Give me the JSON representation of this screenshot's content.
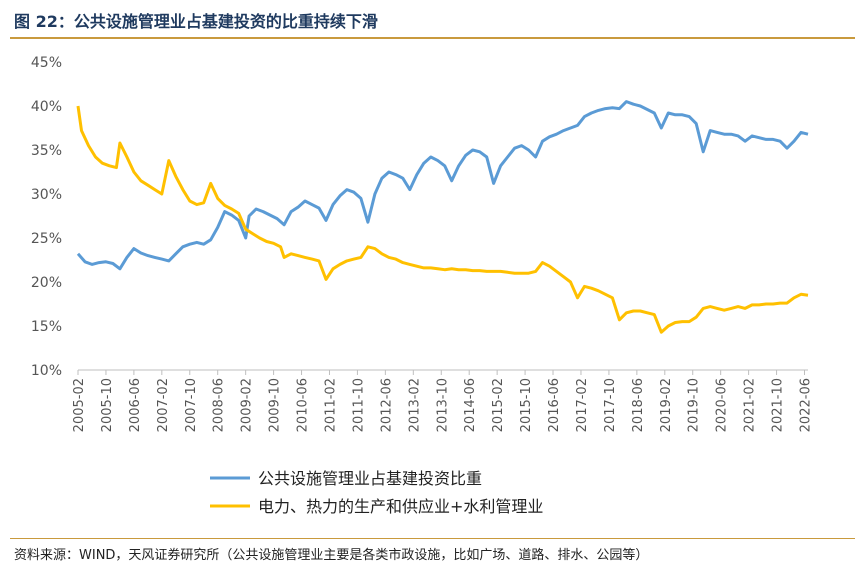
{
  "figure": {
    "title": "图 22：公共设施管理业占基建投资的比重持续下滑",
    "source": "资料来源：WIND，天风证券研究所（公共设施管理业主要是各类市政设施，比如广场、道路、排水、公园等）"
  },
  "chart_data": {
    "type": "line",
    "title": "",
    "xlabel": "",
    "ylabel": "",
    "ylim": [
      0.1,
      0.45
    ],
    "yticks": [
      "10%",
      "15%",
      "20%",
      "25%",
      "30%",
      "35%",
      "40%",
      "45%"
    ],
    "x_ticks": [
      "2005-02",
      "2005-10",
      "2006-06",
      "2007-02",
      "2007-10",
      "2008-06",
      "2009-02",
      "2009-10",
      "2010-06",
      "2011-02",
      "2011-10",
      "2012-06",
      "2013-02",
      "2013-10",
      "2014-06",
      "2015-02",
      "2015-10",
      "2016-06",
      "2017-02",
      "2017-10",
      "2018-06",
      "2019-02",
      "2019-10",
      "2020-06",
      "2021-02",
      "2021-10",
      "2022-06"
    ],
    "grid": false,
    "legend_position": "bottom",
    "series": [
      {
        "name": "公共设施管理业占基建投资比重",
        "color": "#5b9bd5",
        "points": [
          [
            "2005-02",
            0.232
          ],
          [
            "2005-04",
            0.223
          ],
          [
            "2005-06",
            0.22
          ],
          [
            "2005-08",
            0.222
          ],
          [
            "2005-10",
            0.223
          ],
          [
            "2005-12",
            0.221
          ],
          [
            "2006-02",
            0.215
          ],
          [
            "2006-04",
            0.228
          ],
          [
            "2006-06",
            0.238
          ],
          [
            "2006-08",
            0.233
          ],
          [
            "2006-10",
            0.23
          ],
          [
            "2006-12",
            0.228
          ],
          [
            "2007-02",
            0.226
          ],
          [
            "2007-04",
            0.224
          ],
          [
            "2007-06",
            0.232
          ],
          [
            "2007-08",
            0.24
          ],
          [
            "2007-10",
            0.243
          ],
          [
            "2007-12",
            0.245
          ],
          [
            "2008-02",
            0.243
          ],
          [
            "2008-04",
            0.248
          ],
          [
            "2008-06",
            0.262
          ],
          [
            "2008-08",
            0.28
          ],
          [
            "2008-10",
            0.276
          ],
          [
            "2008-12",
            0.27
          ],
          [
            "2009-02",
            0.25
          ],
          [
            "2009-03",
            0.275
          ],
          [
            "2009-05",
            0.283
          ],
          [
            "2009-07",
            0.28
          ],
          [
            "2009-09",
            0.276
          ],
          [
            "2009-11",
            0.272
          ],
          [
            "2010-01",
            0.265
          ],
          [
            "2010-03",
            0.28
          ],
          [
            "2010-05",
            0.285
          ],
          [
            "2010-07",
            0.292
          ],
          [
            "2010-09",
            0.288
          ],
          [
            "2010-11",
            0.284
          ],
          [
            "2011-01",
            0.27
          ],
          [
            "2011-03",
            0.288
          ],
          [
            "2011-05",
            0.298
          ],
          [
            "2011-07",
            0.305
          ],
          [
            "2011-09",
            0.302
          ],
          [
            "2011-11",
            0.295
          ],
          [
            "2012-01",
            0.268
          ],
          [
            "2012-03",
            0.3
          ],
          [
            "2012-05",
            0.318
          ],
          [
            "2012-07",
            0.325
          ],
          [
            "2012-09",
            0.322
          ],
          [
            "2012-11",
            0.318
          ],
          [
            "2013-01",
            0.305
          ],
          [
            "2013-03",
            0.322
          ],
          [
            "2013-05",
            0.335
          ],
          [
            "2013-07",
            0.342
          ],
          [
            "2013-09",
            0.338
          ],
          [
            "2013-11",
            0.332
          ],
          [
            "2014-01",
            0.315
          ],
          [
            "2014-03",
            0.332
          ],
          [
            "2014-05",
            0.344
          ],
          [
            "2014-07",
            0.35
          ],
          [
            "2014-09",
            0.348
          ],
          [
            "2014-11",
            0.342
          ],
          [
            "2015-01",
            0.312
          ],
          [
            "2015-03",
            0.332
          ],
          [
            "2015-05",
            0.342
          ],
          [
            "2015-07",
            0.352
          ],
          [
            "2015-09",
            0.355
          ],
          [
            "2015-11",
            0.35
          ],
          [
            "2016-01",
            0.342
          ],
          [
            "2016-03",
            0.36
          ],
          [
            "2016-05",
            0.365
          ],
          [
            "2016-07",
            0.368
          ],
          [
            "2016-09",
            0.372
          ],
          [
            "2016-11",
            0.375
          ],
          [
            "2017-01",
            0.378
          ],
          [
            "2017-03",
            0.388
          ],
          [
            "2017-05",
            0.392
          ],
          [
            "2017-07",
            0.395
          ],
          [
            "2017-09",
            0.397
          ],
          [
            "2017-11",
            0.398
          ],
          [
            "2018-01",
            0.397
          ],
          [
            "2018-03",
            0.405
          ],
          [
            "2018-05",
            0.402
          ],
          [
            "2018-07",
            0.4
          ],
          [
            "2018-09",
            0.396
          ],
          [
            "2018-11",
            0.392
          ],
          [
            "2019-01",
            0.375
          ],
          [
            "2019-03",
            0.392
          ],
          [
            "2019-05",
            0.39
          ],
          [
            "2019-07",
            0.39
          ],
          [
            "2019-09",
            0.388
          ],
          [
            "2019-11",
            0.38
          ],
          [
            "2020-01",
            0.348
          ],
          [
            "2020-03",
            0.372
          ],
          [
            "2020-05",
            0.37
          ],
          [
            "2020-07",
            0.368
          ],
          [
            "2020-09",
            0.368
          ],
          [
            "2020-11",
            0.366
          ],
          [
            "2021-01",
            0.36
          ],
          [
            "2021-03",
            0.366
          ],
          [
            "2021-05",
            0.364
          ],
          [
            "2021-07",
            0.362
          ],
          [
            "2021-09",
            0.362
          ],
          [
            "2021-11",
            0.36
          ],
          [
            "2022-01",
            0.352
          ],
          [
            "2022-03",
            0.36
          ],
          [
            "2022-05",
            0.37
          ],
          [
            "2022-07",
            0.368
          ]
        ]
      },
      {
        "name": "电力、热力的生产和供应业+水利管理业",
        "color": "#ffc000",
        "points": [
          [
            "2005-02",
            0.4
          ],
          [
            "2005-03",
            0.372
          ],
          [
            "2005-05",
            0.355
          ],
          [
            "2005-07",
            0.342
          ],
          [
            "2005-09",
            0.335
          ],
          [
            "2005-11",
            0.332
          ],
          [
            "2006-01",
            0.33
          ],
          [
            "2006-02",
            0.358
          ],
          [
            "2006-04",
            0.342
          ],
          [
            "2006-06",
            0.325
          ],
          [
            "2006-08",
            0.315
          ],
          [
            "2006-10",
            0.31
          ],
          [
            "2006-12",
            0.305
          ],
          [
            "2007-02",
            0.3
          ],
          [
            "2007-04",
            0.338
          ],
          [
            "2007-06",
            0.32
          ],
          [
            "2007-08",
            0.305
          ],
          [
            "2007-10",
            0.292
          ],
          [
            "2007-12",
            0.288
          ],
          [
            "2008-02",
            0.29
          ],
          [
            "2008-04",
            0.312
          ],
          [
            "2008-06",
            0.295
          ],
          [
            "2008-08",
            0.287
          ],
          [
            "2008-10",
            0.283
          ],
          [
            "2008-12",
            0.278
          ],
          [
            "2009-02",
            0.26
          ],
          [
            "2009-04",
            0.255
          ],
          [
            "2009-06",
            0.25
          ],
          [
            "2009-08",
            0.246
          ],
          [
            "2009-10",
            0.244
          ],
          [
            "2009-12",
            0.24
          ],
          [
            "2010-01",
            0.228
          ],
          [
            "2010-03",
            0.232
          ],
          [
            "2010-05",
            0.23
          ],
          [
            "2010-07",
            0.228
          ],
          [
            "2010-09",
            0.226
          ],
          [
            "2010-11",
            0.224
          ],
          [
            "2011-01",
            0.203
          ],
          [
            "2011-03",
            0.215
          ],
          [
            "2011-05",
            0.22
          ],
          [
            "2011-07",
            0.224
          ],
          [
            "2011-09",
            0.226
          ],
          [
            "2011-11",
            0.228
          ],
          [
            "2012-01",
            0.24
          ],
          [
            "2012-03",
            0.238
          ],
          [
            "2012-05",
            0.232
          ],
          [
            "2012-07",
            0.228
          ],
          [
            "2012-09",
            0.226
          ],
          [
            "2012-11",
            0.222
          ],
          [
            "2013-01",
            0.22
          ],
          [
            "2013-03",
            0.218
          ],
          [
            "2013-05",
            0.216
          ],
          [
            "2013-07",
            0.216
          ],
          [
            "2013-09",
            0.215
          ],
          [
            "2013-11",
            0.214
          ],
          [
            "2014-01",
            0.215
          ],
          [
            "2014-03",
            0.214
          ],
          [
            "2014-05",
            0.214
          ],
          [
            "2014-07",
            0.213
          ],
          [
            "2014-09",
            0.213
          ],
          [
            "2014-11",
            0.212
          ],
          [
            "2015-01",
            0.212
          ],
          [
            "2015-03",
            0.212
          ],
          [
            "2015-05",
            0.211
          ],
          [
            "2015-07",
            0.21
          ],
          [
            "2015-09",
            0.21
          ],
          [
            "2015-11",
            0.21
          ],
          [
            "2016-01",
            0.212
          ],
          [
            "2016-03",
            0.222
          ],
          [
            "2016-05",
            0.218
          ],
          [
            "2016-07",
            0.212
          ],
          [
            "2016-09",
            0.206
          ],
          [
            "2016-11",
            0.2
          ],
          [
            "2017-01",
            0.182
          ],
          [
            "2017-03",
            0.195
          ],
          [
            "2017-05",
            0.193
          ],
          [
            "2017-07",
            0.19
          ],
          [
            "2017-09",
            0.186
          ],
          [
            "2017-11",
            0.182
          ],
          [
            "2018-01",
            0.157
          ],
          [
            "2018-03",
            0.165
          ],
          [
            "2018-05",
            0.167
          ],
          [
            "2018-07",
            0.167
          ],
          [
            "2018-09",
            0.165
          ],
          [
            "2018-11",
            0.163
          ],
          [
            "2019-01",
            0.143
          ],
          [
            "2019-03",
            0.15
          ],
          [
            "2019-05",
            0.154
          ],
          [
            "2019-07",
            0.155
          ],
          [
            "2019-09",
            0.155
          ],
          [
            "2019-11",
            0.16
          ],
          [
            "2020-01",
            0.17
          ],
          [
            "2020-03",
            0.172
          ],
          [
            "2020-05",
            0.17
          ],
          [
            "2020-07",
            0.168
          ],
          [
            "2020-09",
            0.17
          ],
          [
            "2020-11",
            0.172
          ],
          [
            "2021-01",
            0.17
          ],
          [
            "2021-03",
            0.174
          ],
          [
            "2021-05",
            0.174
          ],
          [
            "2021-07",
            0.175
          ],
          [
            "2021-09",
            0.175
          ],
          [
            "2021-11",
            0.176
          ],
          [
            "2022-01",
            0.176
          ],
          [
            "2022-03",
            0.182
          ],
          [
            "2022-05",
            0.186
          ],
          [
            "2022-07",
            0.185
          ]
        ]
      }
    ]
  }
}
